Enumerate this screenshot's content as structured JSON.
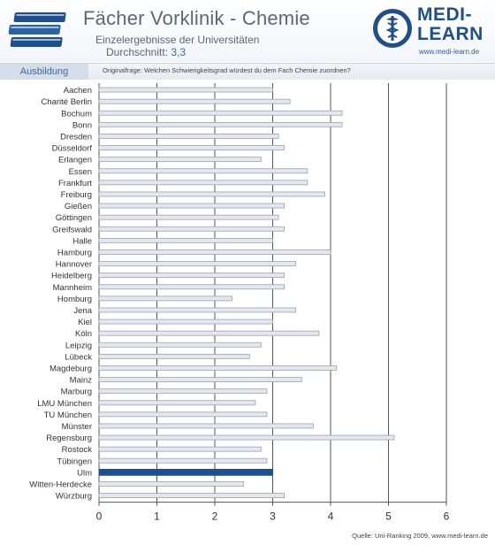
{
  "header": {
    "title": "Fächer Vorklinik - Chemie",
    "subtitle": "Einzelergebnisse der Universitäten",
    "average_label": "Durchschnitt:",
    "average_value": "3,3"
  },
  "logo": {
    "text_line1": "MEDI-",
    "text_line2": "LEARN",
    "url": "www.medi-learn.de",
    "icon": "caduceus-icon"
  },
  "category": "Ausbildung",
  "question": "Originalfrage: Welchen Schwierigkeitsgrad würdest du dem Fach Chemie zuordnen?",
  "source": "Quelle: Uni-Ranking 2009, www.medi-learn.de",
  "colors": {
    "bar_fill": "#e4e8ee",
    "bar_stroke": "#9aa3ad",
    "highlight_fill": "#1f4f8f",
    "grid": "#555555",
    "text": "#333333"
  },
  "chart_data": {
    "type": "bar",
    "orientation": "horizontal",
    "categories": [
      "Aachen",
      "Charité Berlin",
      "Bochum",
      "Bonn",
      "Dresden",
      "Düsseldorf",
      "Erlangen",
      "Essen",
      "Frankfurt",
      "Freiburg",
      "Gießen",
      "Göttingen",
      "Greifswald",
      "Halle",
      "Hamburg",
      "Hannover",
      "Heidelberg",
      "Mannheim",
      "Homburg",
      "Jena",
      "Kiel",
      "Köln",
      "Leipzig",
      "Lübeck",
      "Magdeburg",
      "Mainz",
      "Marburg",
      "LMU München",
      "TU München",
      "Münster",
      "Regensburg",
      "Rostock",
      "Tübingen",
      "Ulm",
      "Witten-Herdecke",
      "Würzburg"
    ],
    "values": [
      3.0,
      3.3,
      4.2,
      4.2,
      3.1,
      3.2,
      2.8,
      3.6,
      3.6,
      3.9,
      3.2,
      3.1,
      3.2,
      3.0,
      4.0,
      3.4,
      3.2,
      3.2,
      2.3,
      3.4,
      3.0,
      3.8,
      2.8,
      2.6,
      4.1,
      3.5,
      2.9,
      2.7,
      2.9,
      3.7,
      5.1,
      2.8,
      2.9,
      3.0,
      2.5,
      3.2
    ],
    "highlight": "Ulm",
    "xlim": [
      0,
      6
    ],
    "xticks": [
      0,
      1,
      2,
      3,
      4,
      5,
      6
    ],
    "grid": true
  }
}
